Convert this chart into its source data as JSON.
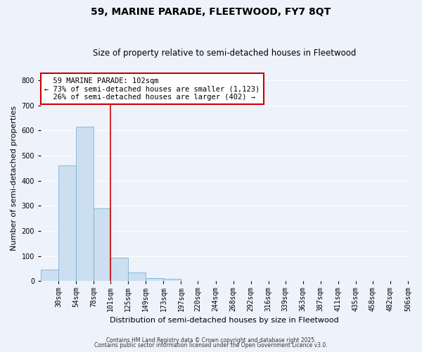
{
  "title": "59, MARINE PARADE, FLEETWOOD, FY7 8QT",
  "subtitle": "Size of property relative to semi-detached houses in Fleetwood",
  "xlabel": "Distribution of semi-detached houses by size in Fleetwood",
  "ylabel": "Number of semi-detached properties",
  "bar_labels": [
    "30sqm",
    "54sqm",
    "78sqm",
    "101sqm",
    "125sqm",
    "149sqm",
    "173sqm",
    "197sqm",
    "220sqm",
    "244sqm",
    "268sqm",
    "292sqm",
    "316sqm",
    "339sqm",
    "363sqm",
    "387sqm",
    "411sqm",
    "435sqm",
    "458sqm",
    "482sqm",
    "506sqm"
  ],
  "bar_values": [
    45,
    460,
    615,
    290,
    95,
    35,
    13,
    10,
    0,
    0,
    0,
    0,
    0,
    0,
    0,
    0,
    0,
    0,
    0,
    0,
    0
  ],
  "bar_color": "#ccdff0",
  "bar_edge_color": "#7ab3d4",
  "annotation_line_color": "#cc0000",
  "property_label": "59 MARINE PARADE: 102sqm",
  "pct_smaller": 73,
  "n_smaller": 1123,
  "pct_larger": 26,
  "n_larger": 402,
  "ylim": [
    0,
    820
  ],
  "yticks": [
    0,
    100,
    200,
    300,
    400,
    500,
    600,
    700,
    800
  ],
  "footer1": "Contains HM Land Registry data © Crown copyright and database right 2025.",
  "footer2": "Contains public sector information licensed under the Open Government Licence v3.0.",
  "bg_color": "#eef2fa",
  "plot_bg_color": "#eef2fa",
  "grid_color": "#ffffff",
  "title_fontsize": 10,
  "subtitle_fontsize": 8.5,
  "axis_label_fontsize": 8,
  "tick_fontsize": 7,
  "annotation_fontsize": 7.5,
  "footer_fontsize": 5.5
}
